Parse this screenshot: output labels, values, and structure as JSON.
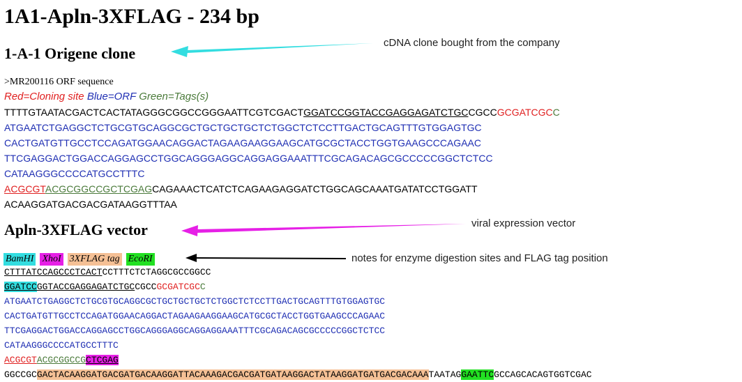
{
  "title": "1A1-Apln-3XFLAG - 234 bp",
  "section1": {
    "heading": "1-A-1 Origene clone",
    "annotation": "cDNA clone bought from the company",
    "orf_header": ">MR200116 ORF sequence",
    "legend_red": "Red=Cloning site",
    "legend_blue": "Blue=ORF",
    "legend_green": "Green=Tags(s)",
    "seq1_plain": "TTTTGTAATACGACTCACTATAGGGCGGCCGGGAATTCGTCGACT",
    "seq1_under": "GGATCCGGTACCGAGGAGATCTGC",
    "seq1_plain2": "CGCC",
    "seq1_red": "GCGATCGC",
    "seq1_green": "C",
    "orf_lines": [
      "ATGAATCTGAGGCTCTGCGTGCAGGCGCTGCTGCTGCTCTGGCTCTCCTTGACTGCAGTTTGTGGAGTGC",
      "CACTGATGTTGCCTCCAGATGGAACAGGACTAGAAGAAGGAAGCATGCGCTACCTGGTGAAGCCCAGAAC",
      "TTCGAGGACTGGACCAGGAGCCTGGCAGGGAGGCAGGAGGAAATTTCGCAGACAGCGCCCCCGGCTCTCC",
      "CATAAGGGCCCCATGCCTTTC"
    ],
    "tail_red": "ACGCGT",
    "tail_green": "ACGCGGCCGCTCGAG",
    "tail_plain": "CAGAAACTCATCTCAGAAGAGGATCTGGCAGCAAATGATATCCTGGATT",
    "tail_line2": "ACAAGGATGACGACGATAAGGTTTAA"
  },
  "section2": {
    "heading": "Apln-3XFLAG vector",
    "annotation": "viral expression vector",
    "legend": {
      "bamhi": "BamHI",
      "xhoi": "XhoI",
      "flag": "3XFLAG tag",
      "ecori": "EcoRI"
    },
    "legend_annotation": "notes for enzyme digestion sites and FLAG tag position",
    "line1_under": "CTTTATCCAGCCCTCACT",
    "line1_plain": "CCTTTCTCTAGGCGCCGGCC",
    "line2_bamhi": "GGATCC",
    "line2_under": "GGTACCGAGGAGATCTGC",
    "line2_plain": "CGCC",
    "line2_red": "GCGATCGC",
    "line2_end": "C",
    "orf_lines": [
      "ATGAATCTGAGGCTCTGCGTGCAGGCGCTGCTGCTGCTCTGGCTCTCCTTGACTGCAGTTTGTGGAGTGC",
      "CACTGATGTTGCCTCCAGATGGAACAGGACTAGAAGAAGGAAGCATGCGCTACCTGGTGAAGCCCAGAAC",
      "TTCGAGGACTGGACCAGGAGCCTGGCAGGGAGGCAGGAGGAAATTTCGCAGACAGCGCCCCCGGCTCTCC",
      "CATAAGGGCCCCATGCCTTTC"
    ],
    "tail_red": "ACGCGT",
    "tail_green": "ACGCGGCCG",
    "tail_xhoi": "CTCGAG",
    "last_plain1": "GGCCGC",
    "last_flag": "GACTACAAGGATGACGATGACAAGGATTACAAAGACGACGATGATAAGGACTATAAGGATGATGACGACAAA",
    "last_plain2": "TAATAG",
    "last_ecori": "GAATTC",
    "last_plain3": "GCCAGCACAGTGGTCGAC"
  },
  "colors": {
    "cyan_arrow": "#33dde0",
    "magenta_arrow": "#e620e6",
    "black_arrow": "#000000"
  }
}
